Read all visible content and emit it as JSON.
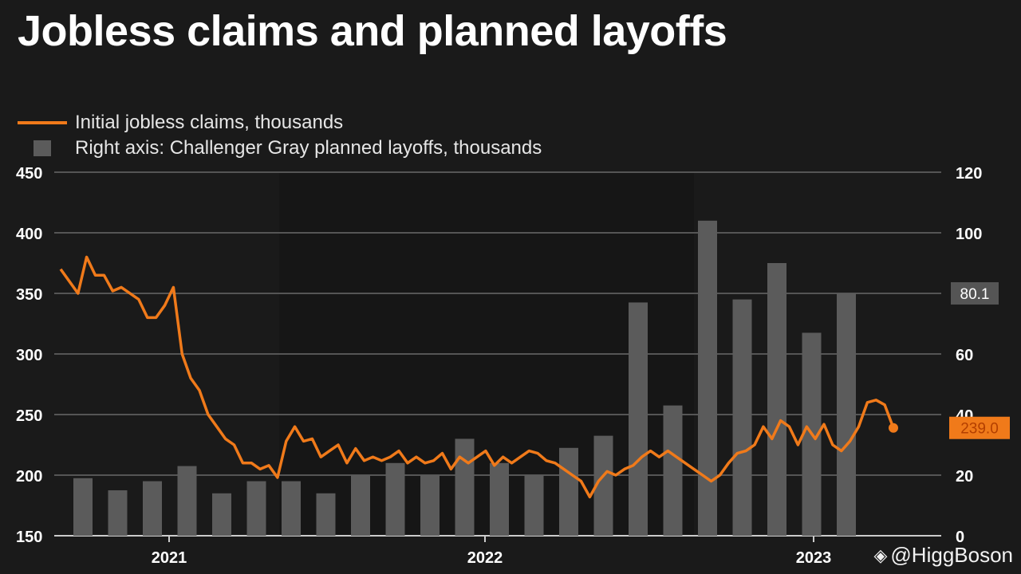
{
  "title": "Jobless claims and planned layoffs",
  "watermark": "@HiggBoson",
  "colors": {
    "background": "#1a1a1a",
    "line": "#f07a1a",
    "bars": "#5b5b5b",
    "grid": "#555555"
  },
  "chart_data": {
    "type": "line",
    "title": "Jobless claims and planned layoffs",
    "legend": [
      "Initial jobless claims, thousands",
      "Right axis: Challenger Gray planned layoffs, thousands"
    ],
    "legend_position": "top-left",
    "grid": true,
    "x_ticks": [
      "2021",
      "2022",
      "2023"
    ],
    "y_left": {
      "ticks": [
        "450",
        "400",
        "350",
        "300",
        "250",
        "200",
        "150"
      ],
      "range": [
        150,
        450
      ]
    },
    "y_right": {
      "ticks": [
        "120",
        "100",
        "80",
        "60",
        "40",
        "20",
        "0"
      ],
      "range": [
        0,
        120
      ]
    },
    "series": [
      {
        "name": "Initial jobless claims, thousands",
        "axis": "left",
        "values": [
          370,
          360,
          350,
          380,
          365,
          365,
          352,
          355,
          350,
          345,
          330,
          330,
          340,
          355,
          300,
          280,
          270,
          250,
          240,
          230,
          225,
          210,
          210,
          205,
          208,
          198,
          228,
          240,
          228,
          230,
          215,
          220,
          225,
          210,
          222,
          212,
          215,
          212,
          215,
          220,
          210,
          215,
          210,
          212,
          218,
          205,
          215,
          210,
          215,
          220,
          208,
          215,
          210,
          215,
          220,
          218,
          212,
          210,
          205,
          200,
          195,
          182,
          195,
          203,
          200,
          205,
          208,
          215,
          220,
          215,
          220,
          215,
          210,
          205,
          200,
          195,
          200,
          210,
          218,
          220,
          225,
          240,
          230,
          245,
          240,
          225,
          240,
          230,
          242,
          225,
          220,
          228,
          240,
          260,
          262,
          258,
          239
        ]
      },
      {
        "name": "Right axis: Challenger Gray planned layoffs, thousands",
        "axis": "right",
        "type": "bar",
        "values": [
          19,
          15,
          18,
          23,
          14,
          18,
          18,
          14,
          20,
          24,
          20,
          32,
          24,
          20,
          29,
          33,
          77,
          43,
          104,
          78,
          90,
          67,
          80
        ]
      }
    ],
    "annotations": {
      "last_bar_label": "80.1",
      "last_line_label": "239.0"
    }
  }
}
